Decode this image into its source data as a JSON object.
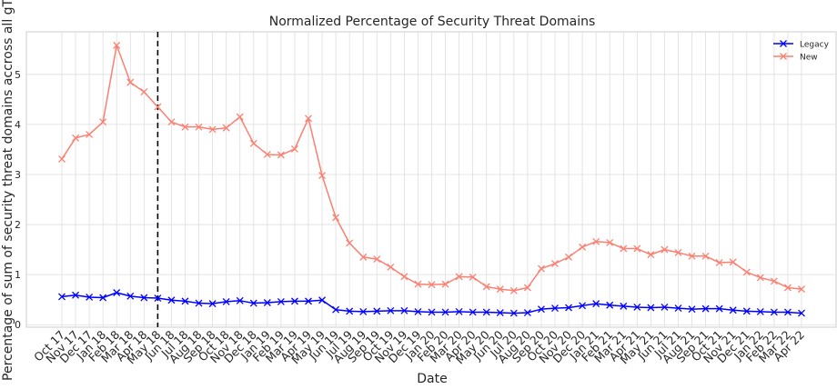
{
  "chart_data": {
    "type": "line",
    "title": "Normalized Percentage of Security Threat Domains",
    "xlabel": "Date",
    "ylabel": "Percentage of sum of security threat domains accross all gTLDs",
    "categories": [
      "Oct 17",
      "Nov 17",
      "Dec 17",
      "Jan 18",
      "Feb 18",
      "Mar 18",
      "Apr 18",
      "May 18",
      "Jun 18",
      "Jul 18",
      "Aug 18",
      "Sep 18",
      "Oct 18",
      "Nov 18",
      "Dec 18",
      "Jan 19",
      "Feb 19",
      "Mar 19",
      "Apr 19",
      "May 19",
      "Jun 19",
      "Jul 19",
      "Aug 19",
      "Sep 19",
      "Oct 19",
      "Nov 19",
      "Dec 19",
      "Jan 20",
      "Feb 20",
      "Mar 20",
      "Apr 20",
      "May 20",
      "Jun 20",
      "Jul 20",
      "Aug 20",
      "Sep 20",
      "Oct 20",
      "Nov 20",
      "Dec 20",
      "Jan 21",
      "Feb 21",
      "Mar 21",
      "Apr 21",
      "May 21",
      "Jun 21",
      "Jul 21",
      "Aug 21",
      "Sep 21",
      "Oct 21",
      "Nov 21",
      "Dec 21",
      "Jan 22",
      "Feb 22",
      "Mar 22",
      "Apr 22"
    ],
    "ylim": [
      -0.05,
      5.85
    ],
    "yticks": [
      0,
      1,
      2,
      3,
      4,
      5
    ],
    "grid": true,
    "legend_position": "top-right",
    "vline": {
      "category": "May 18",
      "style": "dashed",
      "color": "#000000"
    },
    "series": [
      {
        "name": "Legacy",
        "color": "#0000ff",
        "values": [
          0.56,
          0.59,
          0.55,
          0.54,
          0.64,
          0.57,
          0.54,
          0.53,
          0.49,
          0.47,
          0.43,
          0.42,
          0.46,
          0.48,
          0.43,
          0.44,
          0.46,
          0.47,
          0.47,
          0.49,
          0.3,
          0.27,
          0.26,
          0.27,
          0.28,
          0.28,
          0.26,
          0.25,
          0.25,
          0.26,
          0.25,
          0.25,
          0.24,
          0.23,
          0.24,
          0.31,
          0.33,
          0.34,
          0.38,
          0.42,
          0.39,
          0.37,
          0.35,
          0.34,
          0.35,
          0.33,
          0.31,
          0.32,
          0.32,
          0.29,
          0.27,
          0.26,
          0.25,
          0.25,
          0.23
        ]
      },
      {
        "name": "New",
        "color": "#fa8072",
        "values": [
          3.31,
          3.73,
          3.8,
          4.05,
          5.58,
          4.84,
          4.65,
          4.35,
          4.05,
          3.95,
          3.95,
          3.9,
          3.93,
          4.15,
          3.62,
          3.4,
          3.39,
          3.51,
          4.12,
          2.98,
          2.14,
          1.63,
          1.35,
          1.31,
          1.15,
          0.96,
          0.81,
          0.8,
          0.81,
          0.96,
          0.95,
          0.76,
          0.71,
          0.68,
          0.74,
          1.12,
          1.22,
          1.35,
          1.55,
          1.66,
          1.64,
          1.52,
          1.52,
          1.4,
          1.5,
          1.44,
          1.37,
          1.37,
          1.24,
          1.25,
          1.05,
          0.94,
          0.87,
          0.74,
          0.71
        ]
      }
    ]
  }
}
